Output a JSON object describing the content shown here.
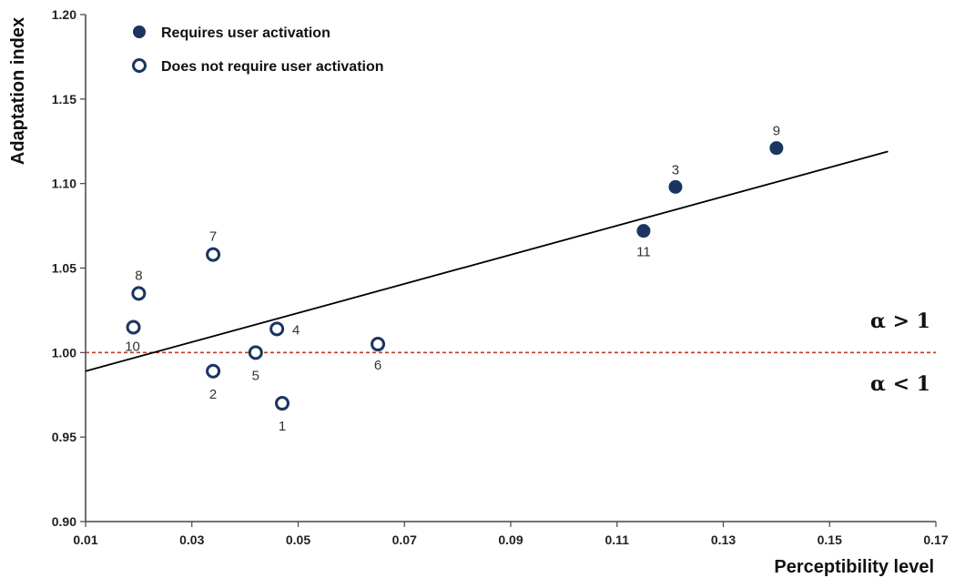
{
  "chart_data": {
    "type": "scatter",
    "xlabel": "Perceptibility level",
    "ylabel": "Adaptation index",
    "xlim": [
      0.01,
      0.17
    ],
    "ylim": [
      0.9,
      1.2
    ],
    "xticks": [
      "0.01",
      "0.03",
      "0.05",
      "0.07",
      "0.09",
      "0.11",
      "0.13",
      "0.15",
      "0.17"
    ],
    "yticks": [
      "0.90",
      "0.95",
      "1.00",
      "1.05",
      "1.10",
      "1.15",
      "1.20"
    ],
    "grid": false,
    "legend_position": "top-left",
    "series": [
      {
        "name": "Requires user activation",
        "marker": "filled-circle",
        "color": "#1a3561",
        "points": [
          {
            "label": "9",
            "x": 0.14,
            "y": 1.121
          },
          {
            "label": "3",
            "x": 0.121,
            "y": 1.098
          },
          {
            "label": "11",
            "x": 0.115,
            "y": 1.072
          }
        ]
      },
      {
        "name": "Does not require user activation",
        "marker": "open-circle",
        "color": "#1a3561",
        "points": [
          {
            "label": "7",
            "x": 0.034,
            "y": 1.058
          },
          {
            "label": "8",
            "x": 0.02,
            "y": 1.035
          },
          {
            "label": "10",
            "x": 0.019,
            "y": 1.015
          },
          {
            "label": "4",
            "x": 0.046,
            "y": 1.014
          },
          {
            "label": "6",
            "x": 0.065,
            "y": 1.005
          },
          {
            "label": "5",
            "x": 0.042,
            "y": 1.0
          },
          {
            "label": "2",
            "x": 0.034,
            "y": 0.989
          },
          {
            "label": "1",
            "x": 0.047,
            "y": 0.97
          }
        ]
      }
    ],
    "trendline": {
      "x1": 0.01,
      "y1": 0.989,
      "x2": 0.161,
      "y2": 1.119,
      "color": "#000000"
    },
    "reference_line": {
      "y": 1.0,
      "color": "#c0392b",
      "style": "dashed"
    },
    "annotations": [
      {
        "text": "α > 1",
        "y": 1.013
      },
      {
        "text": "α < 1",
        "y": 0.985
      }
    ]
  }
}
